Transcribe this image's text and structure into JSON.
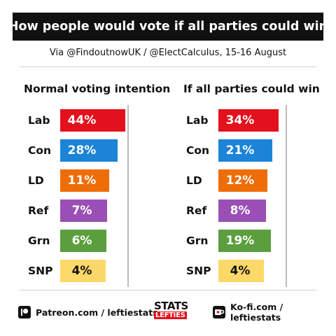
{
  "header": {
    "title": "How people would vote if all parties could win",
    "subtitle": "Via @FindoutnowUK / @ElectCalculus, 15-16 August"
  },
  "colors": {
    "Lab": "#e3101d",
    "Con": "#1b84d8",
    "LD": "#ee6d07",
    "Ref": "#9a4fb6",
    "Grn": "#5b9e3e",
    "SNP": "#fbd867",
    "text_on_light": "#111111"
  },
  "chart_data": [
    {
      "type": "bar",
      "title": "Normal voting intention",
      "categories": [
        "Lab",
        "Con",
        "LD",
        "Ref",
        "Grn",
        "SNP"
      ],
      "values": [
        44,
        28,
        11,
        7,
        6,
        4
      ],
      "labels": [
        "44%",
        "28%",
        "11%",
        "7%",
        "6%",
        "4%"
      ],
      "orientation": "horizontal"
    },
    {
      "type": "bar",
      "title": "If all parties could win",
      "categories": [
        "Lab",
        "Con",
        "LD",
        "Ref",
        "Grn",
        "SNP"
      ],
      "values": [
        34,
        21,
        12,
        8,
        19,
        4
      ],
      "labels": [
        "34%",
        "21%",
        "12%",
        "8%",
        "19%",
        "4%"
      ],
      "orientation": "horizontal"
    }
  ],
  "footer": {
    "patreon": "Patreon.com / leftiestats",
    "kofi": "Ko-fi.com / leftiestats",
    "logo_top": "STATS",
    "logo_bottom": "LEFTIES",
    "patreon_icon": "patreon-icon",
    "kofi_icon": "kofi-cup-icon"
  }
}
